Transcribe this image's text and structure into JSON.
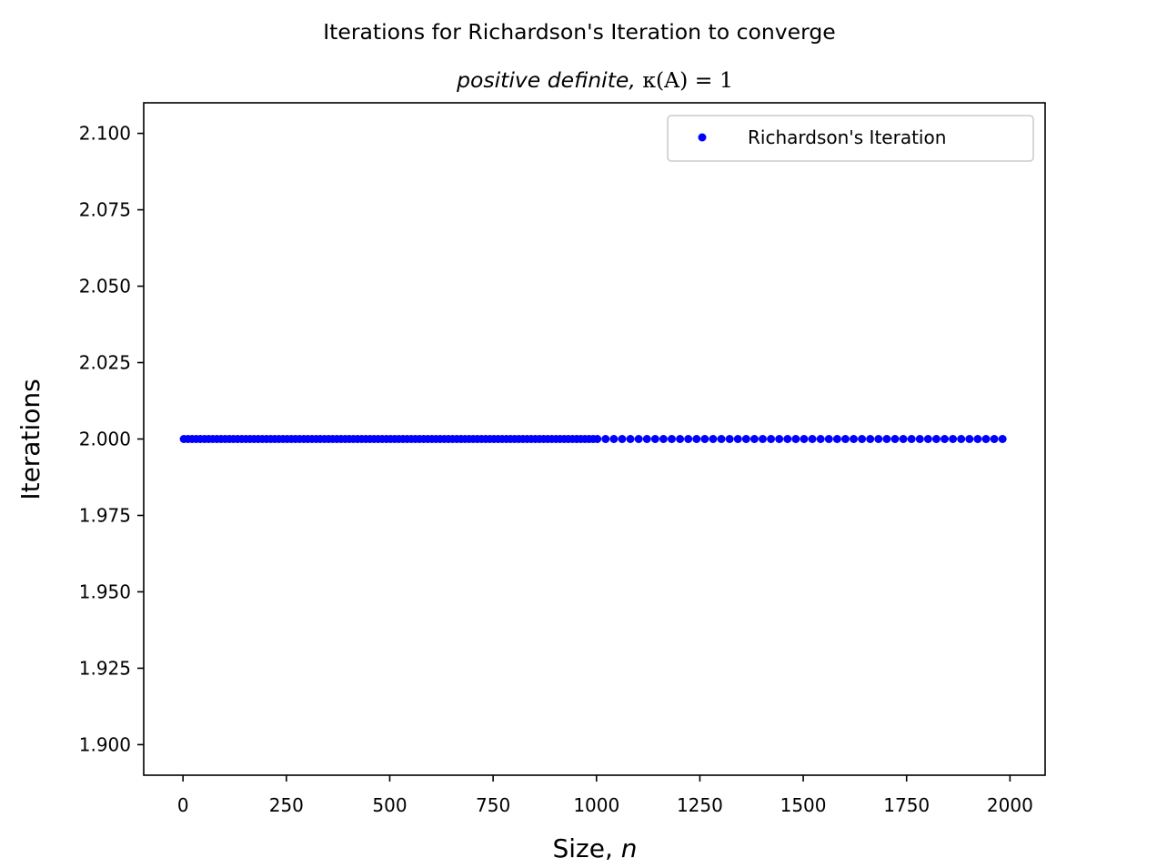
{
  "chart_data": {
    "type": "scatter",
    "title": "Iterations for Richardson's Iteration to converge",
    "subtitle_prefix": "positive definite, ",
    "subtitle_math": "κ(A) = 1",
    "xlabel_text": "Size, ",
    "xlabel_math": "n",
    "ylabel": "Iterations",
    "xlim": [
      -95,
      2085
    ],
    "ylim": [
      1.89,
      2.11
    ],
    "xticks": [
      0,
      250,
      500,
      750,
      1000,
      1250,
      1500,
      1750,
      2000
    ],
    "xtick_labels": [
      "0",
      "250",
      "500",
      "750",
      "1000",
      "1250",
      "1500",
      "1750",
      "2000"
    ],
    "yticks": [
      1.9,
      1.925,
      1.95,
      1.975,
      2.0,
      2.025,
      2.05,
      2.075,
      2.1
    ],
    "ytick_labels": [
      "1.900",
      "1.925",
      "1.950",
      "1.975",
      "2.000",
      "2.025",
      "2.050",
      "2.075",
      "2.100"
    ],
    "grid": false,
    "legend_position": "top-right",
    "series": [
      {
        "name": "Richardson's Iteration",
        "color": "#0000ff",
        "marker": "dot",
        "x_ranges": [
          {
            "start": 2,
            "stop": 1000,
            "step": 10
          },
          {
            "start": 1002,
            "stop": 1982,
            "step": 20
          }
        ],
        "y_constant": 2.0
      }
    ]
  }
}
